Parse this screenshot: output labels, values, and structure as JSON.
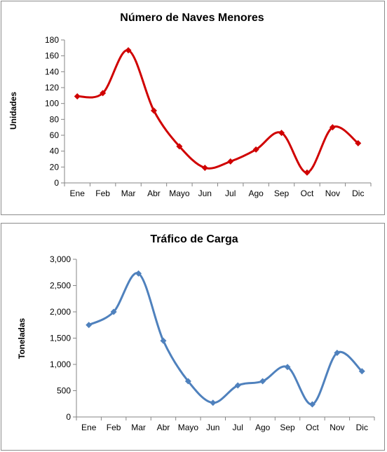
{
  "chart_data": [
    {
      "type": "line",
      "title": "Número de Naves Menores",
      "xlabel": "",
      "ylabel": "Unidades",
      "categories": [
        "Ene",
        "Feb",
        "Mar",
        "Abr",
        "Mayo",
        "Jun",
        "Jul",
        "Ago",
        "Sep",
        "Oct",
        "Nov",
        "Dic"
      ],
      "series": [
        {
          "values": [
            109,
            113,
            167,
            91,
            46,
            19,
            27,
            42,
            63,
            13,
            70,
            50
          ]
        }
      ],
      "ylim": [
        0,
        180
      ],
      "yticks": [
        0,
        20,
        40,
        60,
        80,
        100,
        120,
        140,
        160,
        180
      ],
      "ytick_labels": [
        "0",
        "20",
        "40",
        "60",
        "80",
        "100",
        "120",
        "140",
        "160",
        "180"
      ],
      "color": "#d00000",
      "smooth": true,
      "grid": false
    },
    {
      "type": "line",
      "title": "Tráfico de Carga",
      "xlabel": "",
      "ylabel": "Toneladas",
      "categories": [
        "Ene",
        "Feb",
        "Mar",
        "Abr",
        "Mayo",
        "Jun",
        "Jul",
        "Ago",
        "Sep",
        "Oct",
        "Nov",
        "Dic"
      ],
      "series": [
        {
          "values": [
            1750,
            2000,
            2730,
            1450,
            680,
            270,
            600,
            680,
            950,
            240,
            1220,
            870
          ]
        }
      ],
      "ylim": [
        0,
        3000
      ],
      "yticks": [
        0,
        500,
        1000,
        1500,
        2000,
        2500,
        3000
      ],
      "ytick_labels": [
        "0",
        "500",
        "1,000",
        "1,500",
        "2,000",
        "2,500",
        "3,000"
      ],
      "color": "#4f81bd",
      "smooth": true,
      "grid": false
    }
  ]
}
